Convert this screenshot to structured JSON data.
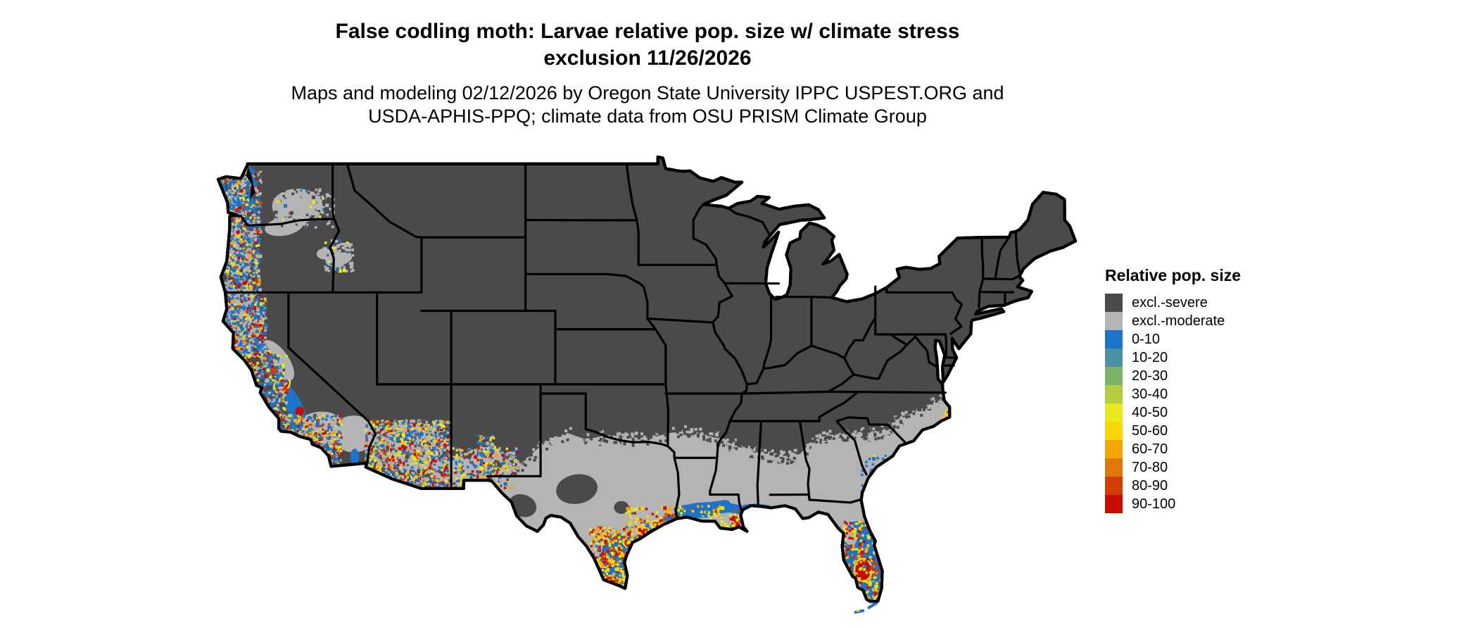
{
  "title": {
    "line1": "False codling moth: Larvae relative pop. size w/ climate stress",
    "line2": "exclusion 11/26/2026"
  },
  "subtitle": {
    "line1": "Maps and modeling 02/12/2026 by Oregon State University IPPC USPEST.ORG and",
    "line2": "USDA-APHIS-PPQ; climate data from OSU PRISM Climate Group"
  },
  "legend": {
    "title": "Relative pop. size",
    "items": [
      {
        "label": "excl.-severe",
        "color": "#4a4a4a"
      },
      {
        "label": "excl.-moderate",
        "color": "#b4b4b4"
      },
      {
        "label": "0-10",
        "color": "#1c73cb"
      },
      {
        "label": "10-20",
        "color": "#4a92a3"
      },
      {
        "label": "20-30",
        "color": "#7cb269"
      },
      {
        "label": "30-40",
        "color": "#b5cc3f"
      },
      {
        "label": "40-50",
        "color": "#e8e81c"
      },
      {
        "label": "50-60",
        "color": "#fbd703"
      },
      {
        "label": "60-70",
        "color": "#f4a701"
      },
      {
        "label": "70-80",
        "color": "#e17808"
      },
      {
        "label": "80-90",
        "color": "#d43d02"
      },
      {
        "label": "90-100",
        "color": "#c90c02"
      }
    ]
  },
  "map": {
    "region": "Contiguous United States",
    "style": "raster choropleth with state borders",
    "border_color": "#000000",
    "background_color": "#ffffff",
    "default_class": "excl.-severe",
    "southern_band_class": "excl.-moderate",
    "hotspot_regions": [
      "Pacific Coast (western WA, OR, NW CA)",
      "California Central Valley",
      "Southern California coast",
      "central and southern Arizona",
      "southern New Mexico / El Paso",
      "southern Texas and Rio Grande Valley",
      "Texas-Louisiana Gulf Coast",
      "Florida peninsula",
      "North Carolina Outer Banks"
    ]
  },
  "chart_data": {
    "type": "heatmap",
    "title": "False codling moth: Larvae relative pop. size w/ climate stress exclusion 11/26/2026",
    "legend_title": "Relative pop. size",
    "classes": [
      "excl.-severe",
      "excl.-moderate",
      "0-10",
      "10-20",
      "20-30",
      "30-40",
      "40-50",
      "50-60",
      "60-70",
      "70-80",
      "80-90",
      "90-100"
    ],
    "colors": [
      "#4a4a4a",
      "#b4b4b4",
      "#1c73cb",
      "#4a92a3",
      "#7cb269",
      "#b5cc3f",
      "#e8e81c",
      "#fbd703",
      "#f4a701",
      "#e17808",
      "#d43d02",
      "#c90c02"
    ],
    "region": "Contiguous United States"
  }
}
